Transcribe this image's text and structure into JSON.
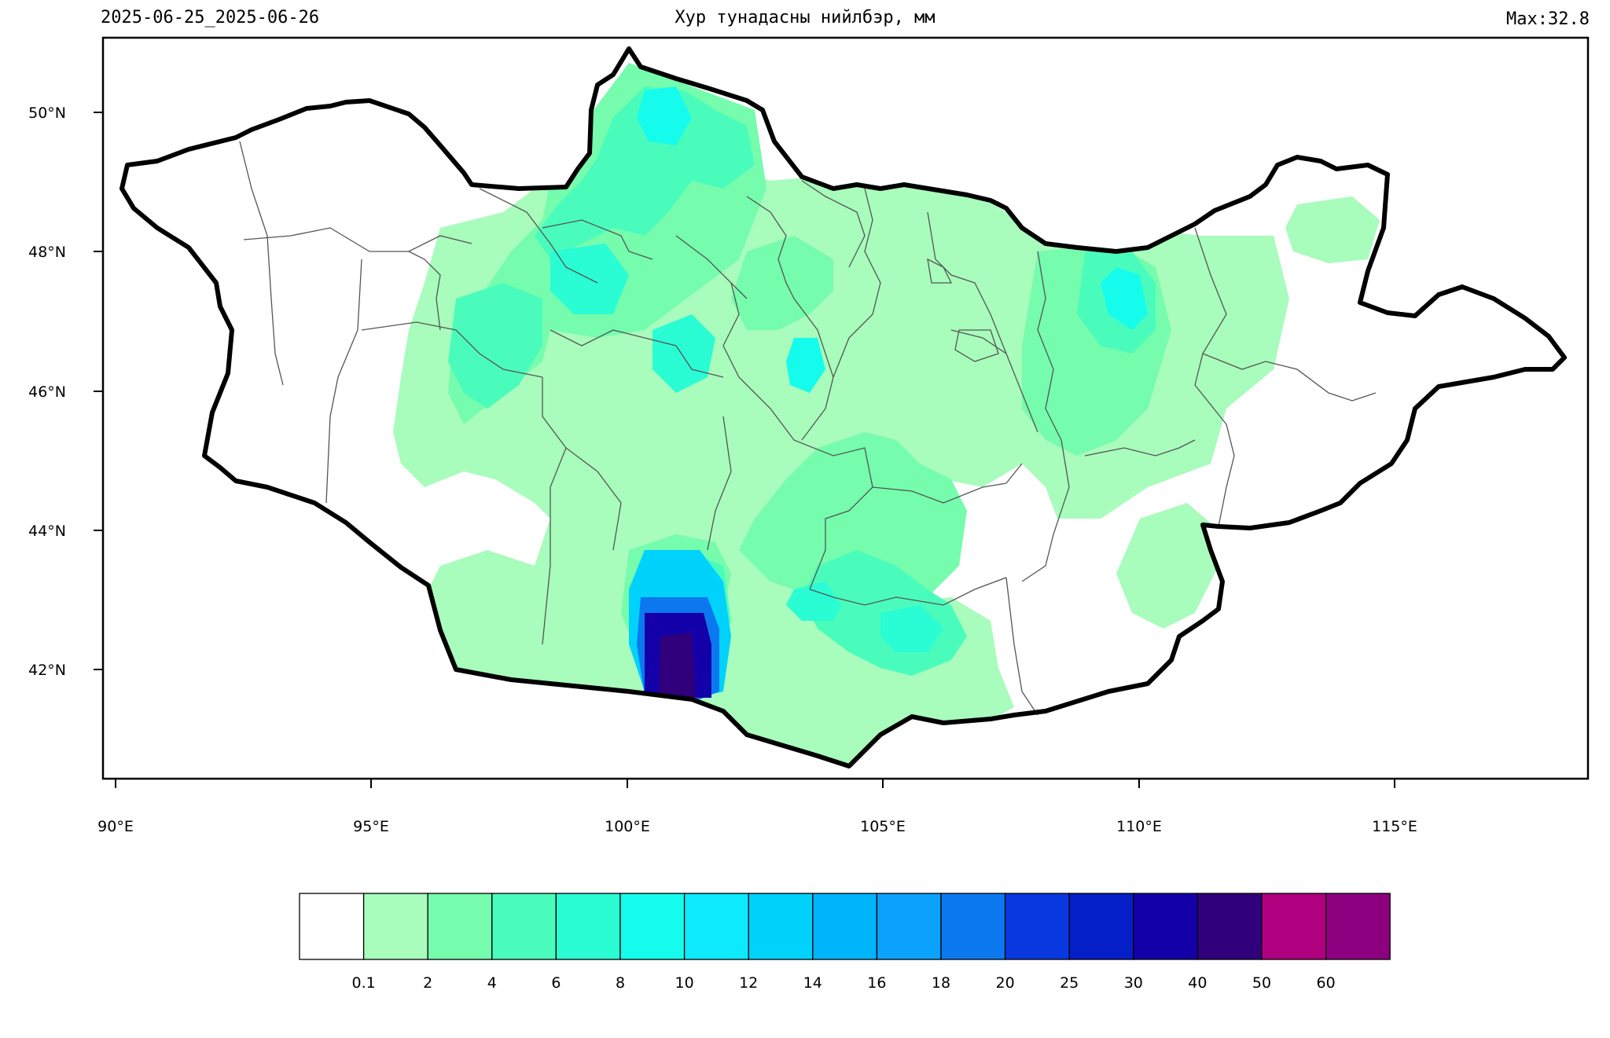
{
  "header": {
    "date_range": "2025-06-25_2025-06-26",
    "title": "Хур тунадасны нийлбэр, мм",
    "max_label": "Max:32.8"
  },
  "map": {
    "x_ticks": [
      "90°E",
      "95°E",
      "100°E",
      "105°E",
      "110°E",
      "115°E"
    ],
    "y_ticks": [
      "50°N",
      "48°N",
      "46°N",
      "44°N",
      "42°N"
    ],
    "border_color": "#000000",
    "province_color": "#555555"
  },
  "colorbar": {
    "labels": [
      "0.1",
      "2",
      "4",
      "6",
      "8",
      "10",
      "12",
      "14",
      "16",
      "18",
      "20",
      "25",
      "30",
      "40",
      "50",
      "60"
    ],
    "colors": [
      "#ffffff",
      "#a8fcbc",
      "#75fcac",
      "#4afcbc",
      "#2afcd4",
      "#16fcec",
      "#0ceafc",
      "#00d2fc",
      "#00b4fc",
      "#0aa2fc",
      "#0c78f0",
      "#0838e0",
      "#041ec8",
      "#1400a8",
      "#30007c",
      "#b00080",
      "#8c0080"
    ]
  }
}
